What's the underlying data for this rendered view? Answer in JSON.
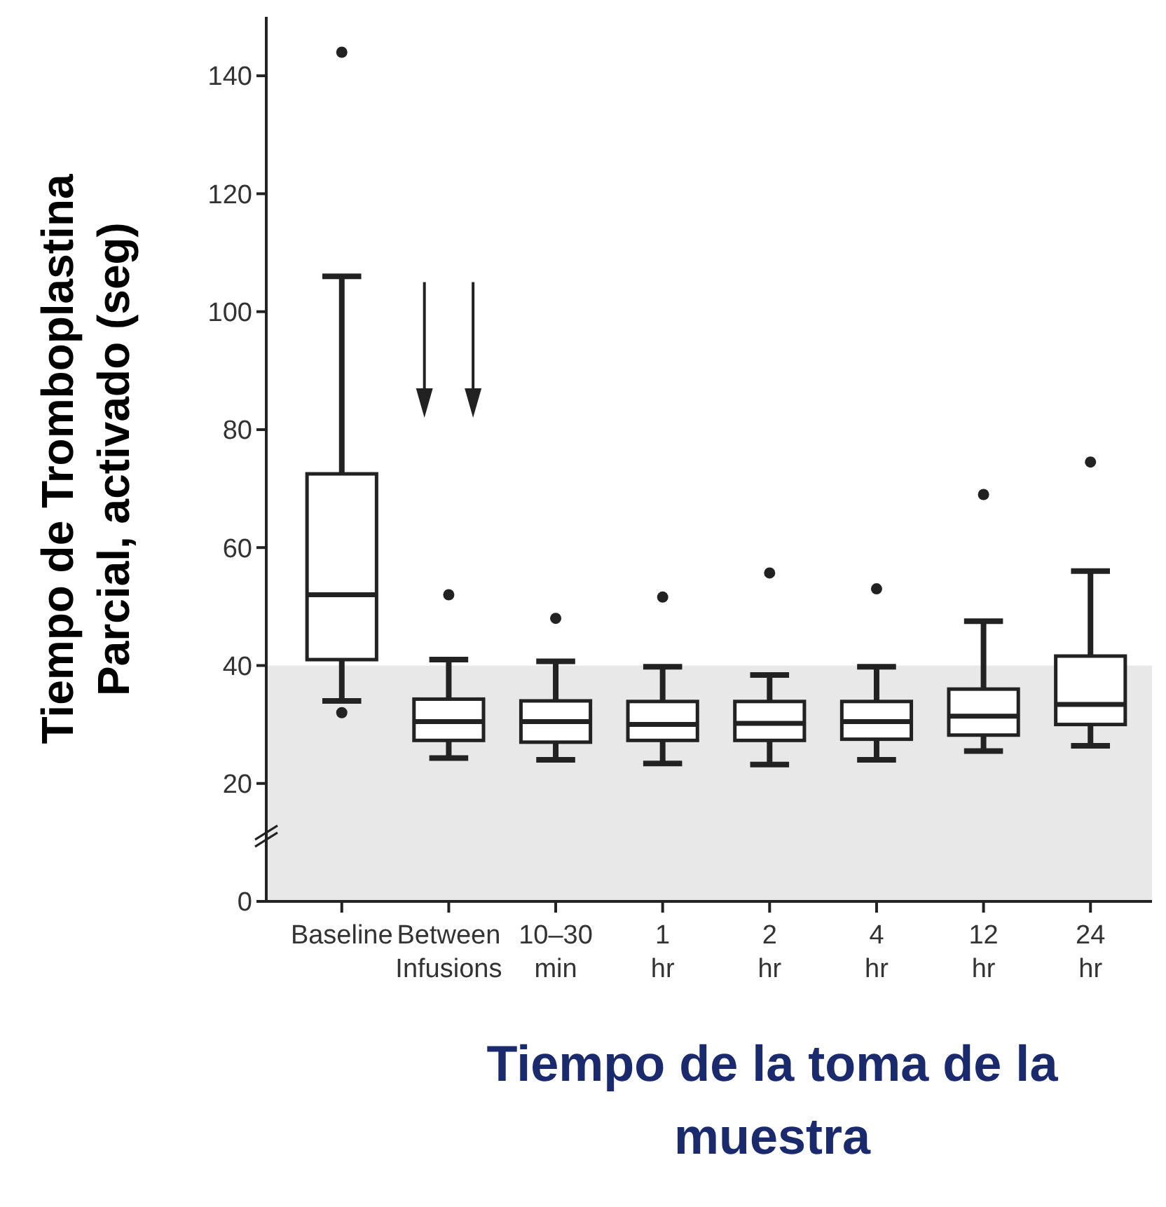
{
  "chart_data": {
    "type": "box",
    "ylabel": "Tiempo de Tromboplastina Parcial, activado (seg)",
    "xlabel": "Tiempo de la toma de la muestra",
    "categories": [
      "Baseline",
      "Between Infusions",
      "10–30 min",
      "1 hr",
      "2 hr",
      "4 hr",
      "12 hr",
      "24 hr"
    ],
    "boxes": [
      {
        "low": 34,
        "q1": 41,
        "median": 52,
        "q3": 72.5,
        "high": 106,
        "outliers": [
          144,
          32
        ]
      },
      {
        "low": 24.3,
        "q1": 27.3,
        "median": 30.5,
        "q3": 34.3,
        "high": 41,
        "outliers": [
          52
        ]
      },
      {
        "low": 24,
        "q1": 27,
        "median": 30.5,
        "q3": 34,
        "high": 40.7,
        "outliers": [
          48
        ]
      },
      {
        "low": 23.4,
        "q1": 27.3,
        "median": 30,
        "q3": 33.9,
        "high": 39.8,
        "outliers": [
          51.6
        ]
      },
      {
        "low": 23.2,
        "q1": 27.3,
        "median": 30.2,
        "q3": 33.9,
        "high": 38.4,
        "outliers": [
          55.7
        ]
      },
      {
        "low": 24,
        "q1": 27.5,
        "median": 30.5,
        "q3": 33.9,
        "high": 39.8,
        "outliers": [
          53
        ]
      },
      {
        "low": 25.5,
        "q1": 28.2,
        "median": 31.4,
        "q3": 36,
        "high": 47.5,
        "outliers": [
          69
        ]
      },
      {
        "low": 26.4,
        "q1": 30,
        "median": 33.4,
        "q3": 41.6,
        "high": 56,
        "outliers": [
          74.5
        ]
      }
    ],
    "ylim": [
      0,
      150
    ],
    "yticks": [
      0,
      20,
      40,
      60,
      80,
      100,
      120,
      140
    ],
    "bands": [
      {
        "axis": "y",
        "from": 0,
        "to": 40,
        "color": "#e8e8e8"
      }
    ],
    "grid": false
  }
}
